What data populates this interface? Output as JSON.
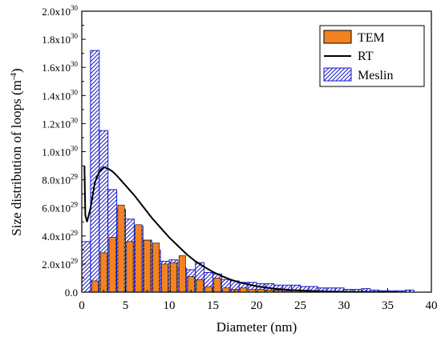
{
  "chart_data": {
    "type": "bar",
    "xlabel": "Diameter (nm)",
    "ylabel": "Size distribution of loops (m",
    "ylabel_sup": "-4",
    "ylabel_close": ")",
    "xlim": [
      0,
      40
    ],
    "ylim": [
      0,
      2e+30
    ],
    "x_ticks": [
      0,
      5,
      10,
      15,
      20,
      25,
      30,
      35,
      40
    ],
    "y_ticks": [
      {
        "value": 0,
        "mant": "0.0",
        "exp": ""
      },
      {
        "value": 2e+29,
        "mant": "2.0x10",
        "exp": "29"
      },
      {
        "value": 4e+29,
        "mant": "4.0x10",
        "exp": "29"
      },
      {
        "value": 6e+29,
        "mant": "6.0x10",
        "exp": "29"
      },
      {
        "value": 8e+29,
        "mant": "8.0x10",
        "exp": "29"
      },
      {
        "value": 1e+30,
        "mant": "1.0x10",
        "exp": "30"
      },
      {
        "value": 1.2e+30,
        "mant": "1.2x10",
        "exp": "30"
      },
      {
        "value": 1.4e+30,
        "mant": "1.4x10",
        "exp": "30"
      },
      {
        "value": 1.6e+30,
        "mant": "1.6x10",
        "exp": "30"
      },
      {
        "value": 1.8e+30,
        "mant": "1.8x10",
        "exp": "30"
      },
      {
        "value": 2e+30,
        "mant": "2.0x10",
        "exp": "30"
      }
    ],
    "legend_position": "top-right",
    "series": [
      {
        "name": "TEM",
        "kind": "bar",
        "color": "#f58220",
        "bin_width": 1,
        "x": [
          1.5,
          2.5,
          3.5,
          4.5,
          5.5,
          6.5,
          7.5,
          8.5,
          9.5,
          10.5,
          11.5,
          12.5,
          13.5,
          14.5,
          15.5,
          16.5,
          17.5,
          18.5,
          19.5,
          20.5,
          21.5,
          22.5,
          23.5,
          24.5,
          25.5,
          26.5,
          27.5,
          28.5,
          29.5,
          30.5,
          31.5,
          32.5,
          33.5,
          34.5,
          35.5,
          36.5
        ],
        "values": [
          8e+28,
          2.8e+29,
          3.9e+29,
          6.2e+29,
          3.6e+29,
          4.8e+29,
          3.7e+29,
          3.5e+29,
          2e+29,
          2.1e+29,
          2.6e+29,
          1.1e+29,
          9e+28,
          4e+28,
          1e+29,
          3e+28,
          2e+28,
          3e+28,
          2e+28,
          2e+28,
          1.5e+28,
          1.5e+28,
          1e+28,
          1e+28,
          1e+28,
          5e+27,
          5e+27,
          5e+27,
          5e+27,
          5e+27,
          5e+27,
          5e+27,
          5e+27,
          5e+27,
          3e+27,
          3e+27
        ]
      },
      {
        "name": "RT",
        "kind": "line",
        "color": "#000000",
        "x": [
          0.3,
          0.4,
          0.6,
          0.8,
          1.0,
          1.5,
          2.0,
          2.5,
          3.0,
          3.5,
          4.0,
          5.0,
          6.0,
          7.0,
          8.0,
          9.0,
          10.0,
          11.0,
          12.0,
          13.0,
          14.0,
          15.0,
          16.0,
          17.0,
          18.0,
          20.0,
          22.0,
          24.0,
          26.0,
          28.0,
          30.0,
          33.0,
          36.0
        ],
        "values": [
          9e+29,
          5.5e+29,
          5e+29,
          5.5e+29,
          6e+29,
          7.8e+29,
          8.6e+29,
          8.9e+29,
          8.8e+29,
          8.6e+29,
          8.3e+29,
          7.6e+29,
          6.9e+29,
          6.1e+29,
          5.3e+29,
          4.6e+29,
          3.9e+29,
          3.3e+29,
          2.7e+29,
          2.2e+29,
          1.8e+29,
          1.45e+29,
          1.15e+29,
          9e+28,
          7e+28,
          4.2e+28,
          2.5e+28,
          1.5e+28,
          9e+27,
          5e+27,
          3e+27,
          1e+27,
          0
        ]
      },
      {
        "name": "Meslin",
        "kind": "bar_hatched",
        "color": "#1a1acc",
        "bin_width": 1,
        "x": [
          0.5,
          1.5,
          2.5,
          3.5,
          4.5,
          5.5,
          6.5,
          7.5,
          8.5,
          9.5,
          10.5,
          11.5,
          12.5,
          13.5,
          14.5,
          15.5,
          16.5,
          17.5,
          18.5,
          19.5,
          20.5,
          21.5,
          22.5,
          23.5,
          24.5,
          25.5,
          26.5,
          27.5,
          28.5,
          29.5,
          30.5,
          31.5,
          32.5,
          33.5,
          34.5,
          35.5,
          36.5,
          37.5
        ],
        "values": [
          3.6e+29,
          1.72e+30,
          1.15e+30,
          7.3e+29,
          5.9e+29,
          5.2e+29,
          4.7e+29,
          3.7e+29,
          3e+29,
          2.2e+29,
          2.3e+29,
          1.7e+29,
          1.6e+29,
          2.1e+29,
          1.4e+29,
          1.3e+29,
          9e+28,
          8e+28,
          7e+28,
          7e+28,
          6e+28,
          6e+28,
          5e+28,
          5e+28,
          5e+28,
          4e+28,
          4e+28,
          3e+28,
          3e+28,
          3e+28,
          2e+28,
          2e+28,
          2.5e+28,
          1.5e+28,
          1e+28,
          1e+28,
          1e+28,
          1.5e+28
        ]
      }
    ]
  }
}
